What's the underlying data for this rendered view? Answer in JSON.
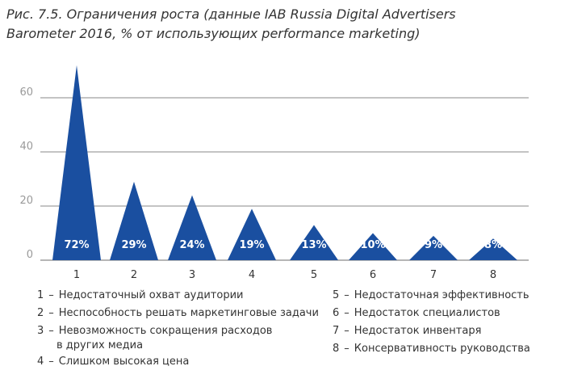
{
  "title_line1": "Рис. 7.5. Ограничения роста (данные IAB Russia Digital Advertisers",
  "title_line2": "Barometer 2016, % от использующих performance marketing)",
  "chart_data": {
    "type": "bar",
    "categories": [
      "1",
      "2",
      "3",
      "4",
      "5",
      "6",
      "7",
      "8"
    ],
    "values": [
      72,
      29,
      24,
      19,
      13,
      10,
      9,
      8
    ],
    "value_labels": [
      "72%",
      "29%",
      "24%",
      "19%",
      "13%",
      "10%",
      "9%",
      "8%"
    ],
    "yticks": [
      0,
      20,
      40,
      60
    ],
    "ylim": [
      0,
      72
    ],
    "grid": true,
    "mark_shape": "triangle",
    "colors": {
      "bar": "#1a4fa0",
      "label": "#ffffff",
      "grid": "#8a8a8a",
      "tick": "#9a9a9a"
    }
  },
  "legend": {
    "items": [
      {
        "num": "1",
        "dash": "–",
        "text": "Недостаточный охват аудитории"
      },
      {
        "num": "2",
        "dash": "–",
        "text": "Неспособность решать маркетинговые задачи"
      },
      {
        "num": "3",
        "dash": "–",
        "text": "Невозможность сокращения расходов",
        "text2": "в других медиа"
      },
      {
        "num": "4",
        "dash": "–",
        "text": "Слишком высокая цена"
      },
      {
        "num": "5",
        "dash": "–",
        "text": "Недостаточная эффективность"
      },
      {
        "num": "6",
        "dash": "–",
        "text": "Недостаток специалистов"
      },
      {
        "num": "7",
        "dash": "–",
        "text": "Недостаток инвентаря"
      },
      {
        "num": "8",
        "dash": "–",
        "text": "Консервативность руководства"
      }
    ]
  }
}
